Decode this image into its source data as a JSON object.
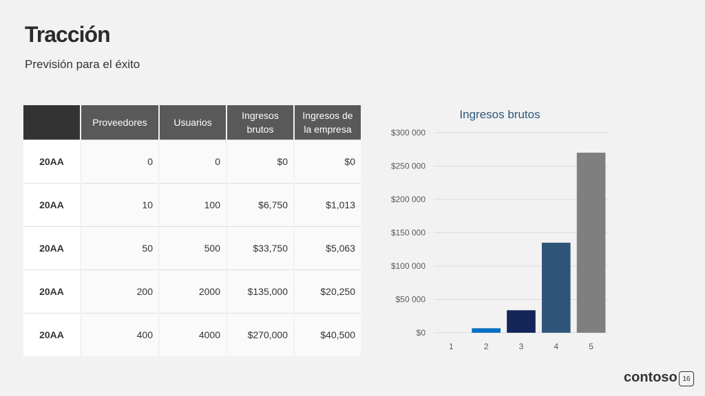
{
  "slide": {
    "title": "Tracción",
    "subtitle": "Previsión para el éxito",
    "logo": "contoso",
    "page_number": "16"
  },
  "table": {
    "headers": [
      "Proveedores",
      "Usuarios",
      "Ingresos brutos",
      "Ingresos de la empresa"
    ],
    "rows": [
      {
        "label": "20AA",
        "cells": [
          "0",
          "0",
          "$0",
          "$0"
        ]
      },
      {
        "label": "20AA",
        "cells": [
          "10",
          "100",
          "$6,750",
          "$1,013"
        ]
      },
      {
        "label": "20AA",
        "cells": [
          "50",
          "500",
          "$33,750",
          "$5,063"
        ]
      },
      {
        "label": "20AA",
        "cells": [
          "200",
          "2000",
          "$135,000",
          "$20,250"
        ]
      },
      {
        "label": "20AA",
        "cells": [
          "400",
          "4000",
          "$270,000",
          "$40,500"
        ]
      }
    ]
  },
  "chart_data": {
    "type": "bar",
    "title": "Ingresos brutos",
    "categories": [
      "1",
      "2",
      "3",
      "4",
      "5"
    ],
    "values": [
      0,
      6750,
      33750,
      135000,
      270000
    ],
    "ylim": [
      0,
      300000
    ],
    "yticks": [
      "$0",
      "$50 000",
      "$100 000",
      "$150 000",
      "$200 000",
      "$250 000",
      "$300 000"
    ],
    "bar_colors": [
      "#2e75b6",
      "#0070c0",
      "#14255a",
      "#2f5679",
      "#7f7f7f"
    ],
    "grid": true
  }
}
